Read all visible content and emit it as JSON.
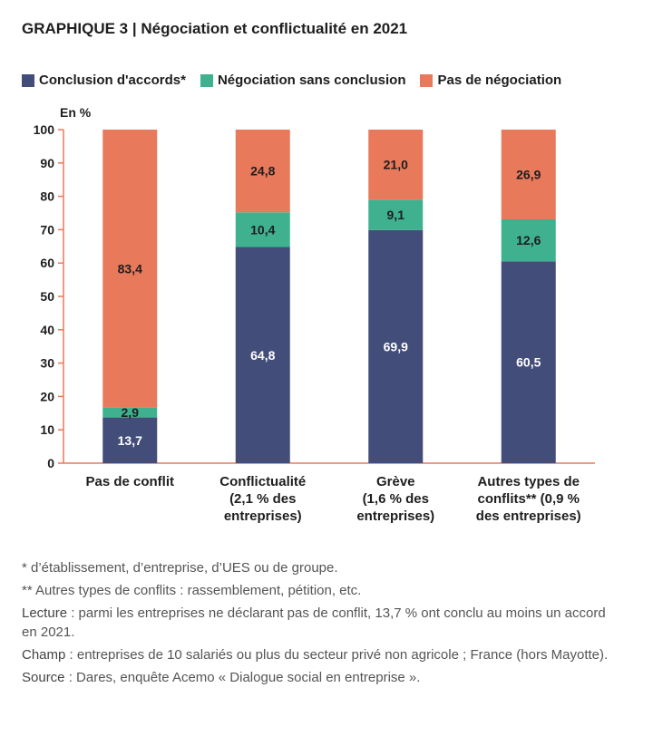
{
  "title": "GRAPHIQUE 3 |  Négociation et conflictualité en 2021",
  "unit_label": "En %",
  "colors": {
    "conclusion": "#434d7a",
    "negociation": "#3fb18f",
    "pas": "#e8795b",
    "axis": "#e8795b"
  },
  "chart_data": {
    "type": "bar",
    "stacked": true,
    "title": "Négociation et conflictualité en 2021",
    "ylabel": "En %",
    "ylim": [
      0,
      100
    ],
    "yticks": [
      0,
      10,
      20,
      30,
      40,
      50,
      60,
      70,
      80,
      90,
      100
    ],
    "legend_position": "top",
    "grid": false,
    "categories": [
      [
        "Pas de conflit"
      ],
      [
        "Conflictualité",
        "(2,1 % des",
        "entreprises)"
      ],
      [
        "Grève",
        "(1,6 % des",
        "entreprises)"
      ],
      [
        "Autres types de",
        "conflits** (0,9 %",
        "des entreprises)"
      ]
    ],
    "series": [
      {
        "name": "Conclusion d'accords*",
        "color": "#434d7a",
        "label_color": "#ffffff",
        "values": [
          13.7,
          64.8,
          69.9,
          60.5
        ],
        "labels": [
          "13,7",
          "64,8",
          "69,9",
          "60,5"
        ]
      },
      {
        "name": "Négociation sans conclusion",
        "color": "#3fb18f",
        "label_color": "#1e1e1e",
        "values": [
          2.9,
          10.4,
          9.1,
          12.6
        ],
        "labels": [
          "2,9",
          "10,4",
          "9,1",
          "12,6"
        ]
      },
      {
        "name": "Pas de négociation",
        "color": "#e8795b",
        "label_color": "#1e1e1e",
        "values": [
          83.4,
          24.8,
          21.0,
          26.9
        ],
        "labels": [
          "83,4",
          "24,8",
          "21,0",
          "26,9"
        ]
      }
    ]
  },
  "notes": {
    "n1": "* d’établissement, d’entreprise, d’UES ou de groupe.",
    "n2": "** Autres types de conflits : rassemblement, pétition, etc.",
    "lecture_key": "Lecture",
    "lecture_text": " : parmi les entreprises ne déclarant pas de conflit, 13,7 % ont conclu au moins un accord en 2021.",
    "champ_key": "Champ",
    "champ_text": " : entreprises de 10 salariés ou plus du secteur privé non agricole ; France (hors Mayotte).",
    "source_key": "Source",
    "source_text": " : Dares, enquête Acemo « Dialogue social en entreprise »."
  }
}
